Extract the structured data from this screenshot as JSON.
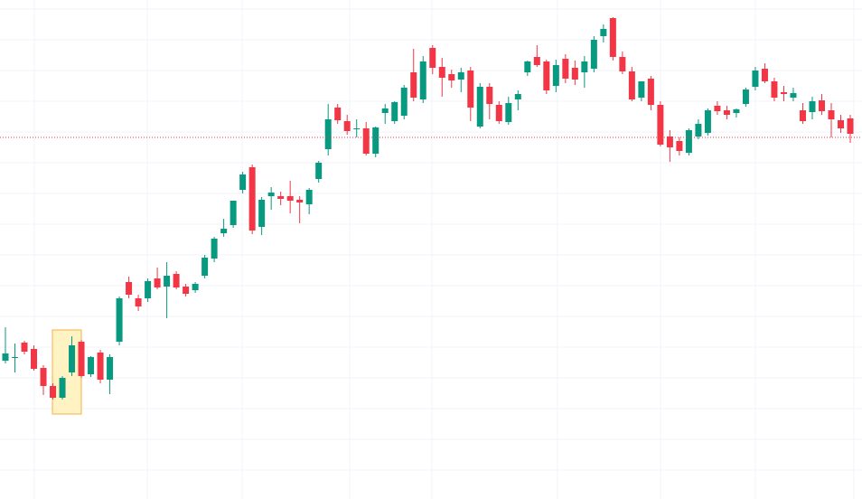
{
  "chart_data": {
    "type": "candlestick",
    "categories": [
      null,
      null,
      null,
      null,
      null,
      null,
      null,
      null,
      null,
      null,
      null,
      null,
      null,
      null,
      null,
      null,
      null,
      null,
      null,
      null,
      null,
      null,
      null,
      null,
      null,
      null,
      null,
      null,
      null,
      null,
      null,
      null,
      null,
      null,
      null,
      null,
      null,
      null,
      null,
      null,
      null,
      null,
      null,
      null,
      null,
      null,
      null,
      null,
      null,
      null,
      null,
      null,
      null,
      null,
      null,
      null,
      null,
      null,
      null,
      null,
      null,
      null,
      null,
      null,
      null,
      null,
      null,
      null,
      null,
      null,
      null,
      null,
      null,
      null,
      null,
      null,
      null,
      null,
      null,
      null,
      null,
      null,
      null,
      null,
      null,
      null,
      null,
      null,
      null,
      null
    ],
    "open": [
      153,
      156,
      173,
      166,
      145,
      125,
      112,
      140,
      174,
      138,
      162,
      132,
      174,
      240,
      222,
      222,
      244,
      235,
      249,
      235,
      231,
      247,
      266,
      294,
      303,
      342,
      367,
      301,
      335,
      335,
      335,
      331,
      326,
      354,
      387,
      433,
      418,
      409,
      410,
      382,
      427,
      418,
      424,
      472,
      442,
      499,
      478,
      470,
      464,
      474,
      412,
      456,
      436,
      417,
      442,
      472,
      489,
      484,
      457,
      487,
      477,
      472,
      476,
      512,
      532,
      489,
      473,
      444,
      465,
      436,
      401,
      396,
      383,
      401,
      405,
      435,
      430,
      427,
      437,
      456,
      476,
      462,
      450,
      444,
      430,
      428,
      441,
      430,
      419,
      421
    ],
    "high": [
      190,
      172,
      175,
      170,
      148,
      128,
      136,
      180,
      176,
      158,
      165,
      160,
      224,
      246,
      226,
      244,
      256,
      262,
      252,
      238,
      240,
      270,
      290,
      310,
      330,
      362,
      370,
      334,
      345,
      340,
      352,
      335,
      344,
      374,
      437,
      437,
      425,
      420,
      417,
      412,
      437,
      440,
      458,
      498,
      490,
      502,
      488,
      475,
      477,
      478,
      460,
      460,
      440,
      445,
      452,
      485,
      502,
      486,
      486,
      492,
      485,
      490,
      512,
      525,
      533,
      495,
      478,
      462,
      468,
      440,
      408,
      400,
      410,
      420,
      432,
      440,
      435,
      432,
      455,
      478,
      482,
      466,
      457,
      455,
      438,
      445,
      448,
      438,
      425,
      425
    ],
    "low": [
      150,
      140,
      160,
      142,
      115,
      110,
      110,
      136,
      134,
      135,
      128,
      116,
      170,
      222,
      208,
      218,
      232,
      200,
      232,
      224,
      228,
      244,
      262,
      290,
      300,
      338,
      293,
      292,
      320,
      325,
      316,
      305,
      315,
      350,
      380,
      415,
      403,
      400,
      380,
      378,
      415,
      415,
      420,
      440,
      438,
      470,
      445,
      455,
      450,
      418,
      410,
      420,
      415,
      414,
      430,
      468,
      478,
      448,
      450,
      460,
      458,
      455,
      472,
      505,
      485,
      470,
      440,
      440,
      430,
      390,
      373,
      380,
      380,
      398,
      402,
      425,
      420,
      422,
      434,
      452,
      460,
      440,
      440,
      440,
      415,
      420,
      425,
      400,
      405,
      394
    ],
    "close": [
      161,
      157,
      163,
      144,
      125,
      112,
      134,
      170,
      136,
      157,
      132,
      157,
      222,
      226,
      213,
      241,
      234,
      247,
      234,
      227,
      238,
      267,
      288,
      299,
      330,
      359,
      297,
      331,
      339,
      332,
      330,
      328,
      342,
      372,
      420,
      419,
      407,
      410,
      382,
      411,
      432,
      439,
      455,
      444,
      484,
      477,
      466,
      463,
      472,
      433,
      456,
      437,
      418,
      438,
      448,
      484,
      480,
      452,
      480,
      465,
      464,
      484,
      508,
      520,
      489,
      473,
      442,
      462,
      436,
      392,
      389,
      385,
      408,
      415,
      430,
      429,
      425,
      431,
      453,
      474,
      462,
      444,
      448,
      449,
      418,
      440,
      429,
      420,
      410,
      404
    ],
    "up_color": "#089981",
    "down_color": "#f23645",
    "price_line": 400,
    "price_line_color": "#f23645",
    "ylim": [
      0,
      552
    ],
    "yticks": [
      32,
      66,
      100,
      134,
      168,
      202,
      236,
      270,
      304,
      338,
      372,
      406,
      440,
      474,
      508,
      542
    ],
    "grid": true
  }
}
